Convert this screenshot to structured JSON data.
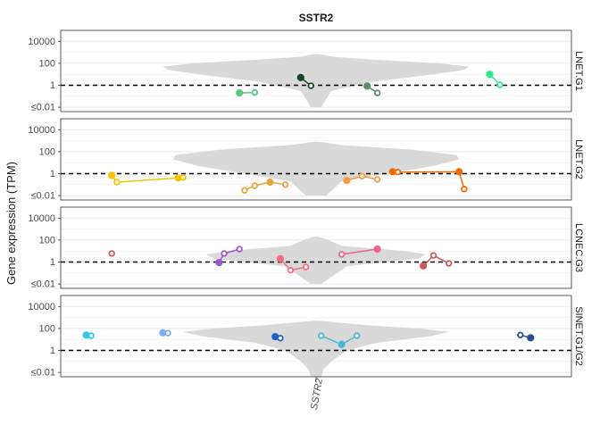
{
  "chart_data": {
    "type": "violin-scatter",
    "title": "SSTR2",
    "ylabel": "Gene expression (TPM)",
    "xlabel": "",
    "x_tick_labels": [
      "SSTR2"
    ],
    "y_axis": {
      "scale": "log10",
      "tick_labels": [
        "≤0.01",
        "1",
        "100",
        "10000"
      ],
      "tick_values": [
        0.01,
        1,
        100,
        10000
      ],
      "range": [
        0.004,
        100000
      ]
    },
    "reference_line": {
      "y": 1,
      "style": "dashed"
    },
    "grid": true,
    "panels": [
      {
        "label": "LNET.G1",
        "violin": {
          "color": "#d9d9d9",
          "profile": [
            [
              0.01,
              0.02
            ],
            [
              0.3,
              0.06
            ],
            [
              2,
              0.22
            ],
            [
              10,
              0.46
            ],
            [
              25,
              0.58
            ],
            [
              50,
              0.6
            ],
            [
              100,
              0.48
            ],
            [
              200,
              0.25
            ],
            [
              400,
              0.06
            ],
            [
              700,
              0.01
            ]
          ]
        },
        "groups": [
          {
            "color": "#56c880",
            "points": [
              [
                0.35,
                0.2,
                "filled"
              ],
              [
                0.38,
                0.22,
                "hollow"
              ]
            ]
          },
          {
            "color": "#17452a",
            "points": [
              [
                0.47,
                5,
                "filled"
              ],
              [
                0.49,
                0.9,
                "hollow"
              ]
            ]
          },
          {
            "color": "#5a8f6e",
            "points": [
              [
                0.6,
                0.85,
                "filled"
              ],
              [
                0.62,
                0.2,
                "hollow"
              ]
            ]
          },
          {
            "color": "#2ee88c",
            "points": [
              [
                0.84,
                10,
                "filled"
              ],
              [
                0.86,
                1.1,
                "hollow"
              ]
            ]
          }
        ]
      },
      {
        "label": "LNET.G2",
        "violin": {
          "color": "#d9d9d9",
          "profile": [
            [
              0.01,
              0.04
            ],
            [
              0.2,
              0.1
            ],
            [
              1,
              0.28
            ],
            [
              5,
              0.46
            ],
            [
              20,
              0.56
            ],
            [
              50,
              0.55
            ],
            [
              150,
              0.38
            ],
            [
              400,
              0.1
            ],
            [
              800,
              0.01
            ]
          ]
        },
        "groups": [
          {
            "color": "#f5c400",
            "points": [
              [
                0.1,
                0.7,
                "filled"
              ],
              [
                0.11,
                0.17,
                "hollow"
              ],
              [
                0.23,
                0.4,
                "filled"
              ],
              [
                0.24,
                0.45,
                "hollow"
              ]
            ]
          },
          {
            "color": "#e8a63a",
            "points": [
              [
                0.36,
                0.03,
                "hollow"
              ],
              [
                0.38,
                0.08,
                "hollow"
              ],
              [
                0.41,
                0.17,
                "filled"
              ],
              [
                0.44,
                0.1,
                "hollow"
              ]
            ]
          },
          {
            "color": "#f59a45",
            "points": [
              [
                0.56,
                0.24,
                "filled"
              ],
              [
                0.59,
                0.6,
                "hollow"
              ],
              [
                0.62,
                0.3,
                "hollow"
              ]
            ]
          },
          {
            "color": "#f06a00",
            "points": [
              [
                0.65,
                1.5,
                "filled"
              ],
              [
                0.66,
                1.4,
                "hollow"
              ],
              [
                0.78,
                1.5,
                "filled"
              ],
              [
                0.79,
                0.04,
                "hollow"
              ]
            ]
          }
        ]
      },
      {
        "label": "LCNEC.G3",
        "violin": {
          "color": "#d9d9d9",
          "profile": [
            [
              0.01,
              0.02
            ],
            [
              0.4,
              0.12
            ],
            [
              1,
              0.27
            ],
            [
              2,
              0.4
            ],
            [
              5,
              0.43
            ],
            [
              10,
              0.35
            ],
            [
              30,
              0.1
            ],
            [
              100,
              0.05
            ],
            [
              200,
              0.01
            ]
          ]
        },
        "groups": [
          {
            "color": "#e05060",
            "points": [
              [
                0.1,
                6,
                "hollow"
              ]
            ]
          },
          {
            "color": "#9b59d0",
            "points": [
              [
                0.31,
                0.9,
                "filled"
              ],
              [
                0.32,
                6,
                "hollow"
              ],
              [
                0.35,
                15,
                "hollow"
              ]
            ]
          },
          {
            "color": "#f07080",
            "points": [
              [
                0.43,
                2,
                "filled"
              ],
              [
                0.45,
                0.18,
                "hollow"
              ],
              [
                0.48,
                0.35,
                "hollow"
              ]
            ]
          },
          {
            "color": "#f06090",
            "points": [
              [
                0.55,
                5,
                "hollow"
              ],
              [
                0.62,
                15,
                "filled"
              ]
            ]
          },
          {
            "color": "#c85a5a",
            "points": [
              [
                0.71,
                0.45,
                "filled"
              ],
              [
                0.73,
                4,
                "hollow"
              ],
              [
                0.76,
                0.75,
                "hollow"
              ]
            ]
          }
        ]
      },
      {
        "label": "SINET.G1/G2",
        "violin": {
          "color": "#d9d9d9",
          "profile": [
            [
              0.004,
              0.02
            ],
            [
              0.02,
              0.03
            ],
            [
              0.1,
              0.06
            ],
            [
              1,
              0.12
            ],
            [
              5,
              0.24
            ],
            [
              20,
              0.45
            ],
            [
              50,
              0.52
            ],
            [
              100,
              0.4
            ],
            [
              200,
              0.2
            ],
            [
              500,
              0.01
            ]
          ]
        },
        "groups": [
          {
            "color": "#33c7f0",
            "points": [
              [
                0.05,
                25,
                "filled"
              ],
              [
                0.06,
                22,
                "hollow"
              ]
            ]
          },
          {
            "color": "#7aaff0",
            "points": [
              [
                0.2,
                40,
                "filled"
              ],
              [
                0.21,
                38,
                "hollow"
              ]
            ]
          },
          {
            "color": "#1f5fcf",
            "points": [
              [
                0.42,
                18,
                "filled"
              ],
              [
                0.43,
                13,
                "hollow"
              ]
            ]
          },
          {
            "color": "#4cb8d8",
            "points": [
              [
                0.51,
                22,
                "hollow"
              ],
              [
                0.55,
                3.5,
                "filled"
              ],
              [
                0.58,
                22,
                "hollow"
              ]
            ]
          },
          {
            "color": "#2a4d8f",
            "points": [
              [
                0.9,
                25,
                "hollow"
              ],
              [
                0.92,
                14,
                "filled"
              ]
            ]
          }
        ]
      }
    ]
  }
}
